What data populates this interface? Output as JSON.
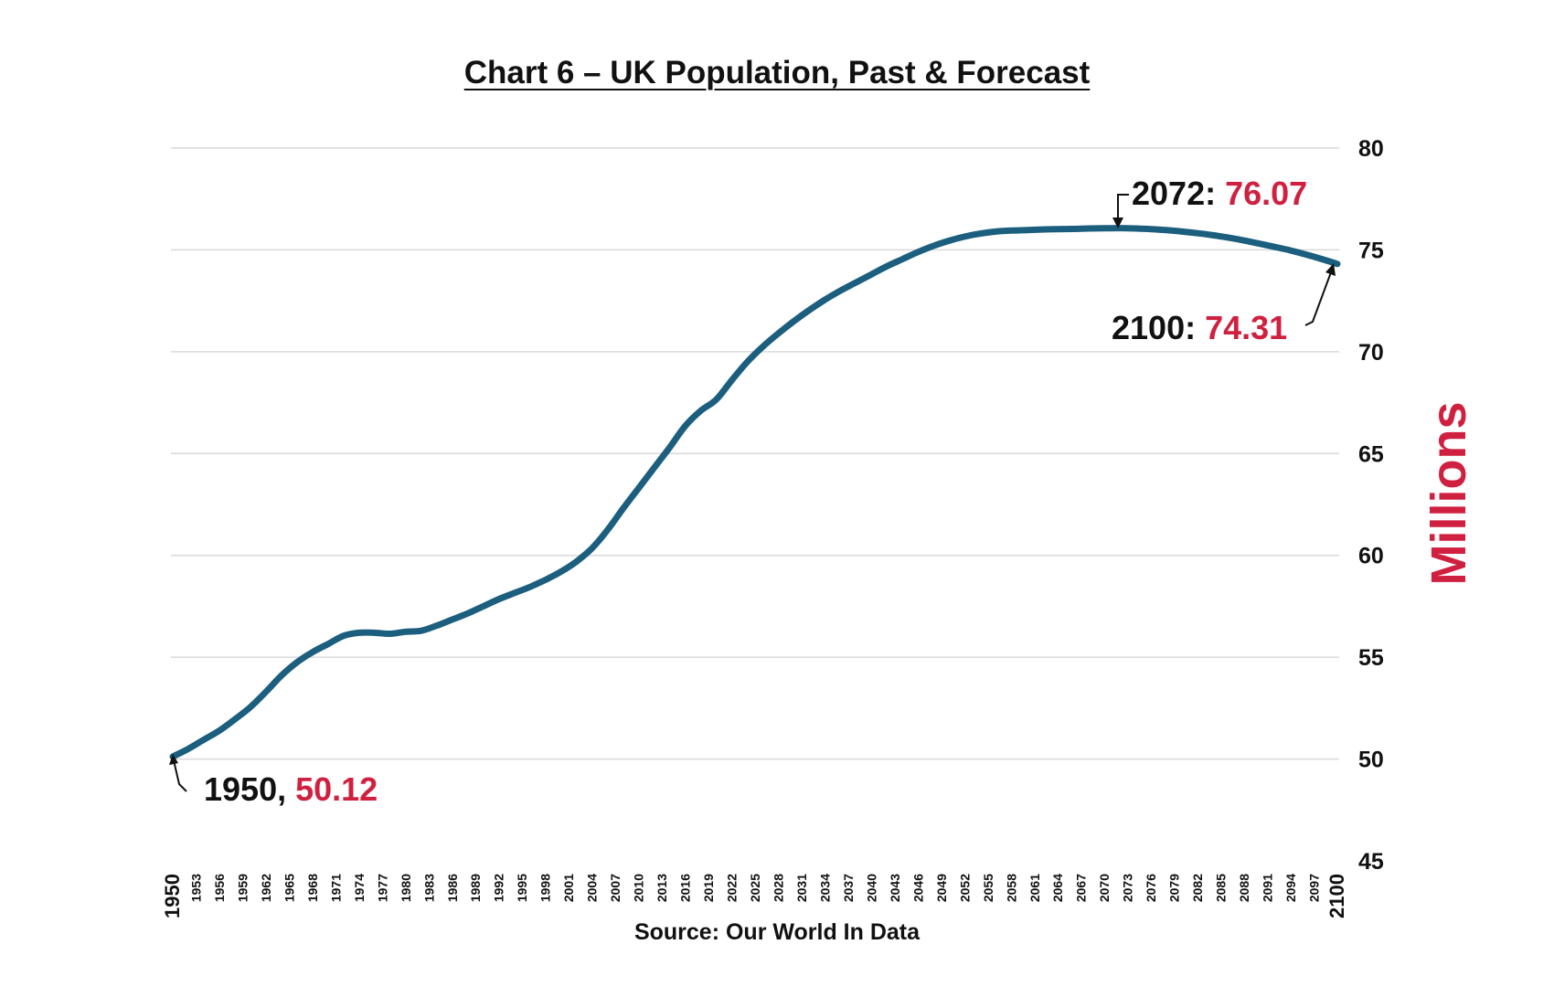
{
  "chart_data": {
    "type": "line",
    "title": "Chart 6 – UK Population, Past & Forecast",
    "source": "Source: Our World In Data",
    "ylabel": "Millions",
    "ylim": [
      45,
      80
    ],
    "yticks": [
      "80",
      "75",
      "70",
      "65",
      "60",
      "55",
      "50",
      "45"
    ],
    "ytick_values": [
      80,
      75,
      70,
      65,
      60,
      55,
      50,
      45
    ],
    "xlim": [
      1950,
      2100
    ],
    "xticks": [
      "1950",
      "1953",
      "1956",
      "1959",
      "1962",
      "1965",
      "1968",
      "1971",
      "1974",
      "1977",
      "1980",
      "1983",
      "1986",
      "1989",
      "1992",
      "1995",
      "1998",
      "2001",
      "2004",
      "2007",
      "2010",
      "2013",
      "2016",
      "2019",
      "2022",
      "2025",
      "2028",
      "2031",
      "2034",
      "2037",
      "2040",
      "2043",
      "2046",
      "2049",
      "2052",
      "2055",
      "2058",
      "2061",
      "2064",
      "2067",
      "2070",
      "2073",
      "2076",
      "2079",
      "2082",
      "2085",
      "2088",
      "2091",
      "2094",
      "2097",
      "2100"
    ],
    "grid": true,
    "line_color": "#1b5e7e",
    "accent_color": "#d0203f",
    "series": [
      {
        "x": [
          1950,
          1952,
          1954,
          1956,
          1958,
          1960,
          1962,
          1964,
          1966,
          1968,
          1970,
          1972,
          1974,
          1976,
          1978,
          1980,
          1982,
          1984,
          1986,
          1988,
          1990,
          1992,
          1994,
          1996,
          1998,
          2000,
          2002,
          2004,
          2006,
          2008,
          2010,
          2012,
          2014,
          2016,
          2018,
          2020,
          2022,
          2024,
          2026,
          2028,
          2030,
          2032,
          2034,
          2036,
          2038,
          2040,
          2042,
          2044,
          2046,
          2048,
          2050,
          2052,
          2054,
          2056,
          2058,
          2060,
          2062,
          2064,
          2066,
          2068,
          2070,
          2072,
          2074,
          2076,
          2078,
          2080,
          2082,
          2084,
          2086,
          2088,
          2090,
          2092,
          2094,
          2096,
          2098,
          2100
        ],
        "y": [
          50.12,
          50.5,
          50.95,
          51.4,
          51.95,
          52.55,
          53.3,
          54.1,
          54.75,
          55.25,
          55.65,
          56.05,
          56.2,
          56.2,
          56.15,
          56.25,
          56.3,
          56.55,
          56.85,
          57.15,
          57.5,
          57.85,
          58.15,
          58.45,
          58.8,
          59.2,
          59.7,
          60.35,
          61.25,
          62.3,
          63.3,
          64.3,
          65.3,
          66.35,
          67.1,
          67.65,
          68.6,
          69.5,
          70.25,
          70.9,
          71.5,
          72.05,
          72.55,
          73.0,
          73.4,
          73.8,
          74.2,
          74.55,
          74.9,
          75.2,
          75.45,
          75.65,
          75.8,
          75.9,
          75.95,
          75.97,
          76.0,
          76.02,
          76.03,
          76.05,
          76.06,
          76.07,
          76.05,
          76.02,
          75.97,
          75.9,
          75.82,
          75.72,
          75.6,
          75.46,
          75.3,
          75.14,
          74.97,
          74.77,
          74.55,
          74.31
        ]
      }
    ],
    "annotations": [
      {
        "year": "1950",
        "sep": ",",
        "value": "50.12"
      },
      {
        "year": "2072",
        "sep": ":",
        "value": "76.07"
      },
      {
        "year": "2100",
        "sep": ":",
        "value": "74.31"
      }
    ]
  }
}
